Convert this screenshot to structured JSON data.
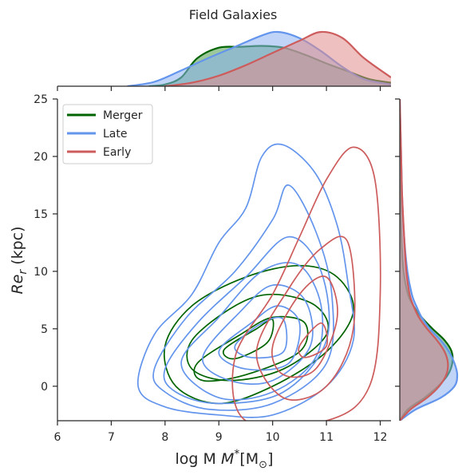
{
  "chart_data": {
    "type": "joint_kde",
    "title": "Field Galaxies",
    "xlabel": "log M",
    "xlabel_sub": "*",
    "xlabel_bracket": "[M",
    "xlabel_sun": "⊙",
    "xlabel_close": "]",
    "ylabel": "Re",
    "ylabel_sub": "r",
    "ylabel_unit": " (kpc)",
    "xlim": [
      6,
      12.2
    ],
    "ylim": [
      -3,
      25
    ],
    "xticks": [
      6,
      7,
      8,
      9,
      10,
      11,
      12
    ],
    "yticks": [
      0,
      5,
      10,
      15,
      20,
      25
    ],
    "legend_position": "top-left",
    "series": [
      {
        "name": "Merger",
        "color": "#006400",
        "fill": "#4a9a4a",
        "x_density": [
          [
            7.7,
            0.0
          ],
          [
            8.0,
            0.02
          ],
          [
            8.3,
            0.1
          ],
          [
            8.6,
            0.32
          ],
          [
            9.0,
            0.44
          ],
          [
            9.4,
            0.45
          ],
          [
            9.8,
            0.46
          ],
          [
            10.2,
            0.44
          ],
          [
            10.6,
            0.36
          ],
          [
            11.0,
            0.26
          ],
          [
            11.4,
            0.17
          ],
          [
            11.8,
            0.08
          ],
          [
            12.2,
            0.04
          ]
        ],
        "y_density": [
          [
            -3,
            0.0
          ],
          [
            -2,
            0.15
          ],
          [
            -1,
            0.45
          ],
          [
            0,
            0.7
          ],
          [
            1,
            0.88
          ],
          [
            2,
            0.96
          ],
          [
            3,
            0.95
          ],
          [
            4,
            0.82
          ],
          [
            5,
            0.6
          ],
          [
            6,
            0.4
          ],
          [
            7,
            0.25
          ],
          [
            8,
            0.15
          ],
          [
            10,
            0.07
          ],
          [
            13,
            0.03
          ],
          [
            17,
            0.01
          ],
          [
            21,
            0.0
          ]
        ],
        "contours": [
          [
            [
              8.0,
              3.5
            ],
            [
              8.5,
              7.0
            ],
            [
              9.5,
              9.5
            ],
            [
              10.5,
              10.5
            ],
            [
              11.2,
              9.5
            ],
            [
              11.5,
              6.5
            ],
            [
              11.0,
              3.0
            ],
            [
              10.0,
              0.0
            ],
            [
              9.0,
              -1.5
            ],
            [
              8.2,
              0.0
            ]
          ],
          [
            [
              8.5,
              4.0
            ],
            [
              9.3,
              7.0
            ],
            [
              10.0,
              8.0
            ],
            [
              10.8,
              7.0
            ],
            [
              11.0,
              4.5
            ],
            [
              10.2,
              1.5
            ],
            [
              9.2,
              0.5
            ],
            [
              8.5,
              1.5
            ]
          ],
          [
            [
              8.6,
              2.0
            ],
            [
              9.4,
              4.5
            ],
            [
              10.0,
              6.0
            ],
            [
              10.6,
              5.5
            ],
            [
              10.5,
              3.0
            ],
            [
              9.5,
              1.0
            ],
            [
              8.7,
              0.5
            ]
          ],
          [
            [
              9.1,
              3.2
            ],
            [
              9.7,
              5.0
            ],
            [
              10.0,
              5.8
            ],
            [
              9.9,
              3.8
            ],
            [
              9.3,
              2.4
            ]
          ]
        ]
      },
      {
        "name": "Late",
        "color": "#6495ed",
        "fill": "#8ab0f0",
        "x_density": [
          [
            7.3,
            0.0
          ],
          [
            7.8,
            0.05
          ],
          [
            8.3,
            0.18
          ],
          [
            8.8,
            0.32
          ],
          [
            9.3,
            0.45
          ],
          [
            9.8,
            0.58
          ],
          [
            10.1,
            0.62
          ],
          [
            10.5,
            0.55
          ],
          [
            10.9,
            0.4
          ],
          [
            11.3,
            0.22
          ],
          [
            11.7,
            0.08
          ],
          [
            12.2,
            0.02
          ]
        ],
        "y_density": [
          [
            -3,
            0.0
          ],
          [
            -2,
            0.3
          ],
          [
            -1,
            0.75
          ],
          [
            0,
            1.0
          ],
          [
            1,
            1.05
          ],
          [
            2,
            1.0
          ],
          [
            3,
            0.9
          ],
          [
            4,
            0.75
          ],
          [
            5,
            0.55
          ],
          [
            6,
            0.4
          ],
          [
            7,
            0.3
          ],
          [
            8,
            0.22
          ],
          [
            10,
            0.14
          ],
          [
            13,
            0.08
          ],
          [
            17,
            0.04
          ],
          [
            21,
            0.02
          ],
          [
            25,
            0.0
          ]
        ],
        "contours": [
          [
            [
              7.5,
              0.0
            ],
            [
              7.8,
              4.5
            ],
            [
              8.5,
              8.0
            ],
            [
              9.0,
              12.5
            ],
            [
              9.5,
              15.5
            ],
            [
              9.8,
              20.0
            ],
            [
              10.2,
              21.0
            ],
            [
              10.8,
              18.5
            ],
            [
              11.2,
              14.0
            ],
            [
              11.4,
              9.0
            ],
            [
              11.5,
              4.0
            ],
            [
              11.0,
              0.0
            ],
            [
              10.0,
              -2.5
            ],
            [
              9.0,
              -2.5
            ],
            [
              8.0,
              -1.8
            ]
          ],
          [
            [
              7.8,
              1.5
            ],
            [
              8.4,
              6.0
            ],
            [
              9.3,
              10.0
            ],
            [
              10.0,
              14.5
            ],
            [
              10.3,
              17.5
            ],
            [
              10.8,
              13.5
            ],
            [
              11.1,
              8.0
            ],
            [
              11.0,
              2.0
            ],
            [
              10.0,
              -1.5
            ],
            [
              8.8,
              -2.0
            ],
            [
              8.0,
              -0.5
            ]
          ],
          [
            [
              8.0,
              1.5
            ],
            [
              8.6,
              5.5
            ],
            [
              9.5,
              9.5
            ],
            [
              10.3,
              13.0
            ],
            [
              10.9,
              10.0
            ],
            [
              11.0,
              4.0
            ],
            [
              10.2,
              -0.5
            ],
            [
              9.0,
              -1.5
            ],
            [
              8.2,
              -0.5
            ]
          ],
          [
            [
              8.3,
              2.0
            ],
            [
              9.0,
              6.0
            ],
            [
              9.8,
              10.0
            ],
            [
              10.5,
              10.5
            ],
            [
              10.9,
              7.0
            ],
            [
              10.8,
              2.5
            ],
            [
              10.0,
              -0.5
            ],
            [
              9.0,
              -1.0
            ]
          ],
          [
            [
              8.7,
              2.5
            ],
            [
              9.4,
              6.5
            ],
            [
              10.0,
              8.8
            ],
            [
              10.6,
              7.5
            ],
            [
              10.7,
              3.5
            ],
            [
              10.0,
              0.5
            ],
            [
              9.2,
              0.5
            ]
          ],
          [
            [
              9.0,
              3.0
            ],
            [
              9.6,
              5.5
            ],
            [
              10.1,
              7.0
            ],
            [
              10.5,
              5.5
            ],
            [
              10.3,
              2.0
            ],
            [
              9.5,
              1.5
            ]
          ],
          [
            [
              9.3,
              3.5
            ],
            [
              9.8,
              5.5
            ],
            [
              10.2,
              5.8
            ],
            [
              10.2,
              3.0
            ],
            [
              9.6,
              2.5
            ]
          ]
        ]
      },
      {
        "name": "Early",
        "color": "#cd5c5c",
        "fill": "#e08c8c",
        "x_density": [
          [
            8.0,
            0.0
          ],
          [
            8.5,
            0.04
          ],
          [
            9.0,
            0.12
          ],
          [
            9.5,
            0.24
          ],
          [
            10.0,
            0.38
          ],
          [
            10.5,
            0.52
          ],
          [
            10.9,
            0.62
          ],
          [
            11.3,
            0.55
          ],
          [
            11.7,
            0.32
          ],
          [
            12.2,
            0.1
          ]
        ],
        "y_density": [
          [
            -3,
            0.0
          ],
          [
            -2,
            0.2
          ],
          [
            -1,
            0.5
          ],
          [
            0,
            0.72
          ],
          [
            1,
            0.85
          ],
          [
            2,
            0.88
          ],
          [
            3,
            0.82
          ],
          [
            4,
            0.68
          ],
          [
            5,
            0.5
          ],
          [
            6,
            0.35
          ],
          [
            7,
            0.25
          ],
          [
            8,
            0.18
          ],
          [
            10,
            0.12
          ],
          [
            13,
            0.08
          ],
          [
            17,
            0.04
          ],
          [
            21,
            0.02
          ],
          [
            25,
            0.0
          ]
        ],
        "contours": [
          [
            [
              9.3,
              2.5
            ],
            [
              10.0,
              8.0
            ],
            [
              10.5,
              13.0
            ],
            [
              11.0,
              18.0
            ],
            [
              11.5,
              20.8
            ],
            [
              11.9,
              18.0
            ],
            [
              12.0,
              8.0
            ],
            [
              11.8,
              0.0
            ],
            [
              11.0,
              -3.0
            ],
            [
              9.5,
              -3.0
            ]
          ],
          [
            [
              9.7,
              3.0
            ],
            [
              10.3,
              8.5
            ],
            [
              10.9,
              12.0
            ],
            [
              11.4,
              12.5
            ],
            [
              11.5,
              5.0
            ],
            [
              11.0,
              0.0
            ],
            [
              10.2,
              -1.0
            ]
          ],
          [
            [
              10.0,
              3.5
            ],
            [
              10.5,
              8.0
            ],
            [
              11.0,
              9.5
            ],
            [
              11.2,
              6.0
            ],
            [
              10.8,
              1.5
            ],
            [
              10.2,
              1.0
            ]
          ],
          [
            [
              10.5,
              3.5
            ],
            [
              10.9,
              5.5
            ],
            [
              11.0,
              3.5
            ],
            [
              10.6,
              2.5
            ]
          ]
        ]
      }
    ]
  }
}
